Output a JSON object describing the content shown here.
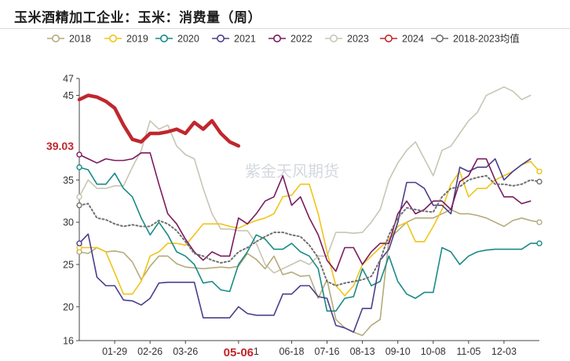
{
  "title": "玉米酒精加工企业：玉米：消费量（周）",
  "watermark": "紫金天风期货",
  "chart_data": {
    "type": "line",
    "title": "玉米酒精加工企业：玉米：消费量（周）",
    "xlabel": "",
    "ylabel": "",
    "ylim": [
      16,
      47
    ],
    "y_ticks": [
      16,
      20,
      25,
      30,
      35,
      45,
      47
    ],
    "x_tick_labels": [
      "01-29",
      "02-26",
      "03-26",
      "05-06",
      "06-18",
      "07-16",
      "08-13",
      "09-10",
      "10-08",
      "11-05",
      "12-03"
    ],
    "x_tick_weeks": [
      4,
      8,
      12,
      18,
      24,
      28,
      32,
      36,
      40,
      44,
      48
    ],
    "x_partial_labels": [
      {
        "text": "1",
        "week": 20
      }
    ],
    "highlight_tick": {
      "text": "05-06",
      "week": 18,
      "color": "#c0272d"
    },
    "highlight_value": {
      "text": "39.03",
      "value": 39.03,
      "color": "#c0272d"
    },
    "grid": false,
    "legend_position": "top",
    "series": [
      {
        "name": "2018",
        "color": "#b5ab7b",
        "width": 1.6,
        "dash": "",
        "marker": true,
        "values": [
          26.5,
          26.3,
          27.0,
          26.5,
          26.6,
          26.4,
          25.3,
          23.2,
          24.8,
          26.0,
          26.0,
          25.1,
          24.7,
          24.6,
          24.5,
          24.6,
          24.7,
          24.6,
          24.8,
          26.3,
          25.6,
          24.5,
          26.0,
          23.8,
          24.1,
          23.6,
          23.7,
          21.0,
          23.2,
          18.5,
          17.5,
          17.0,
          16.6,
          17.8,
          18.5,
          28.0,
          29.0,
          30.0,
          30.5,
          30.5,
          30.5,
          31.0,
          31.5,
          31.0,
          31.0,
          30.8,
          30.5,
          30.0,
          29.5,
          30.2,
          30.5,
          30.2,
          30.0
        ]
      },
      {
        "name": "2019",
        "color": "#f0c419",
        "width": 1.6,
        "dash": "",
        "marker": true,
        "values": [
          27.0,
          27.0,
          27.0,
          26.5,
          24.0,
          21.5,
          21.5,
          23.0,
          26.0,
          26.5,
          27.5,
          27.5,
          27.3,
          28.5,
          29.8,
          29.8,
          29.8,
          29.5,
          29.3,
          29.8,
          30.2,
          30.5,
          31.0,
          33.0,
          33.2,
          34.5,
          34.5,
          31.0,
          26.5,
          22.5,
          21.3,
          22.5,
          25.0,
          26.0,
          27.0,
          28.0,
          29.5,
          30.0,
          27.7,
          27.7,
          29.5,
          31.5,
          34.5,
          36.0,
          33.0,
          34.0,
          34.0,
          35.0,
          35.5,
          36.0,
          36.8,
          37.2,
          36.0
        ]
      },
      {
        "name": "2020",
        "color": "#1a8a86",
        "width": 1.6,
        "dash": "",
        "marker": true,
        "values": [
          36.5,
          36.2,
          34.5,
          34.5,
          35.8,
          34.0,
          33.0,
          30.5,
          28.5,
          30.0,
          28.5,
          26.5,
          26.0,
          25.0,
          22.8,
          23.0,
          22.0,
          21.8,
          25.0,
          26.5,
          28.5,
          28.0,
          26.8,
          26.8,
          27.5,
          26.5,
          26.0,
          24.5,
          19.5,
          19.5,
          21.0,
          21.2,
          24.5,
          22.5,
          23.0,
          26.0,
          23.0,
          21.5,
          21.0,
          21.7,
          21.7,
          27.0,
          26.5,
          25.0,
          26.0,
          26.5,
          26.7,
          26.8,
          26.8,
          26.8,
          26.8,
          27.5,
          27.5
        ]
      },
      {
        "name": "2021",
        "color": "#4a3e8c",
        "width": 1.6,
        "dash": "",
        "marker": true,
        "values": [
          27.5,
          28.6,
          23.5,
          22.5,
          22.5,
          20.8,
          20.7,
          20.2,
          21.0,
          22.8,
          22.9,
          22.9,
          22.9,
          22.9,
          18.7,
          18.7,
          18.7,
          18.7,
          20.0,
          19.2,
          19.0,
          19.0,
          19.0,
          21.5,
          21.5,
          22.5,
          22.5,
          21.2,
          21.0,
          17.8,
          17.5,
          17.0,
          19.8,
          19.8,
          25.5,
          26.8,
          30.0,
          34.7,
          34.7,
          34.0,
          32.0,
          32.0,
          31.0,
          36.5,
          36.0,
          36.5,
          36.5,
          37.5,
          35.0,
          36.0,
          36.8,
          37.5,
          null
        ]
      },
      {
        "name": "2022",
        "color": "#7a1b5e",
        "width": 1.6,
        "dash": "",
        "marker": true,
        "values": [
          38.0,
          37.5,
          37.0,
          37.5,
          37.3,
          37.3,
          37.5,
          38.2,
          38.2,
          34.5,
          31.0,
          29.8,
          28.0,
          26.5,
          25.5,
          26.5,
          26.0,
          26.0,
          30.5,
          29.8,
          31.0,
          32.5,
          33.0,
          35.5,
          32.0,
          33.0,
          30.5,
          28.5,
          25.5,
          24.2,
          27.0,
          27.0,
          25.0,
          26.5,
          27.5,
          27.5,
          31.0,
          32.5,
          31.0,
          31.5,
          32.5,
          32.5,
          31.5,
          34.8,
          35.5,
          37.5,
          37.5,
          35.0,
          33.0,
          33.0,
          32.2,
          32.5,
          null
        ]
      },
      {
        "name": "2023",
        "color": "#c9c5b4",
        "width": 1.6,
        "dash": "",
        "marker": true,
        "values": [
          33.0,
          35.0,
          34.0,
          34.0,
          34.3,
          34.3,
          36.5,
          38.5,
          42.0,
          41.0,
          41.5,
          39.0,
          38.0,
          37.5,
          34.0,
          31.0,
          29.2,
          29.2,
          29.0,
          29.0,
          27.5,
          25.0,
          24.0,
          24.5,
          25.0,
          25.5,
          25.0,
          26.0,
          26.0,
          28.8,
          28.8,
          28.7,
          28.8,
          30.0,
          31.5,
          35.0,
          37.0,
          38.5,
          39.5,
          37.5,
          35.5,
          38.5,
          39.0,
          40.5,
          42.0,
          43.0,
          45.0,
          45.5,
          46.0,
          45.5,
          44.5,
          45.0,
          null
        ]
      },
      {
        "name": "2024",
        "color": "#c0272d",
        "width": 4.5,
        "dash": "",
        "marker": false,
        "values": [
          44.5,
          45.0,
          44.8,
          44.3,
          43.5,
          41.5,
          39.8,
          39.5,
          40.5,
          40.5,
          40.7,
          41.0,
          40.5,
          41.8,
          41.0,
          42.0,
          40.5,
          39.5,
          39.03
        ]
      },
      {
        "name": "2018-2023均值",
        "color": "#707070",
        "width": 2.0,
        "dash": "2,3",
        "marker": true,
        "values": [
          32.0,
          32.2,
          30.5,
          30.3,
          29.8,
          29.5,
          29.7,
          29.5,
          29.5,
          30.2,
          29.8,
          29.0,
          27.7,
          26.3,
          26.0,
          25.5,
          25.2,
          25.4,
          26.5,
          27.0,
          27.7,
          28.3,
          28.8,
          28.8,
          28.5,
          28.3,
          27.3,
          25.8,
          23.0,
          22.5,
          22.8,
          23.0,
          23.2,
          23.6,
          25.5,
          28.5,
          30.5,
          31.7,
          31.5,
          31.3,
          31.2,
          33.0,
          34.0,
          34.2,
          35.0,
          35.3,
          35.5,
          34.5,
          34.5,
          34.3,
          34.5,
          35.0,
          34.8
        ]
      }
    ]
  }
}
